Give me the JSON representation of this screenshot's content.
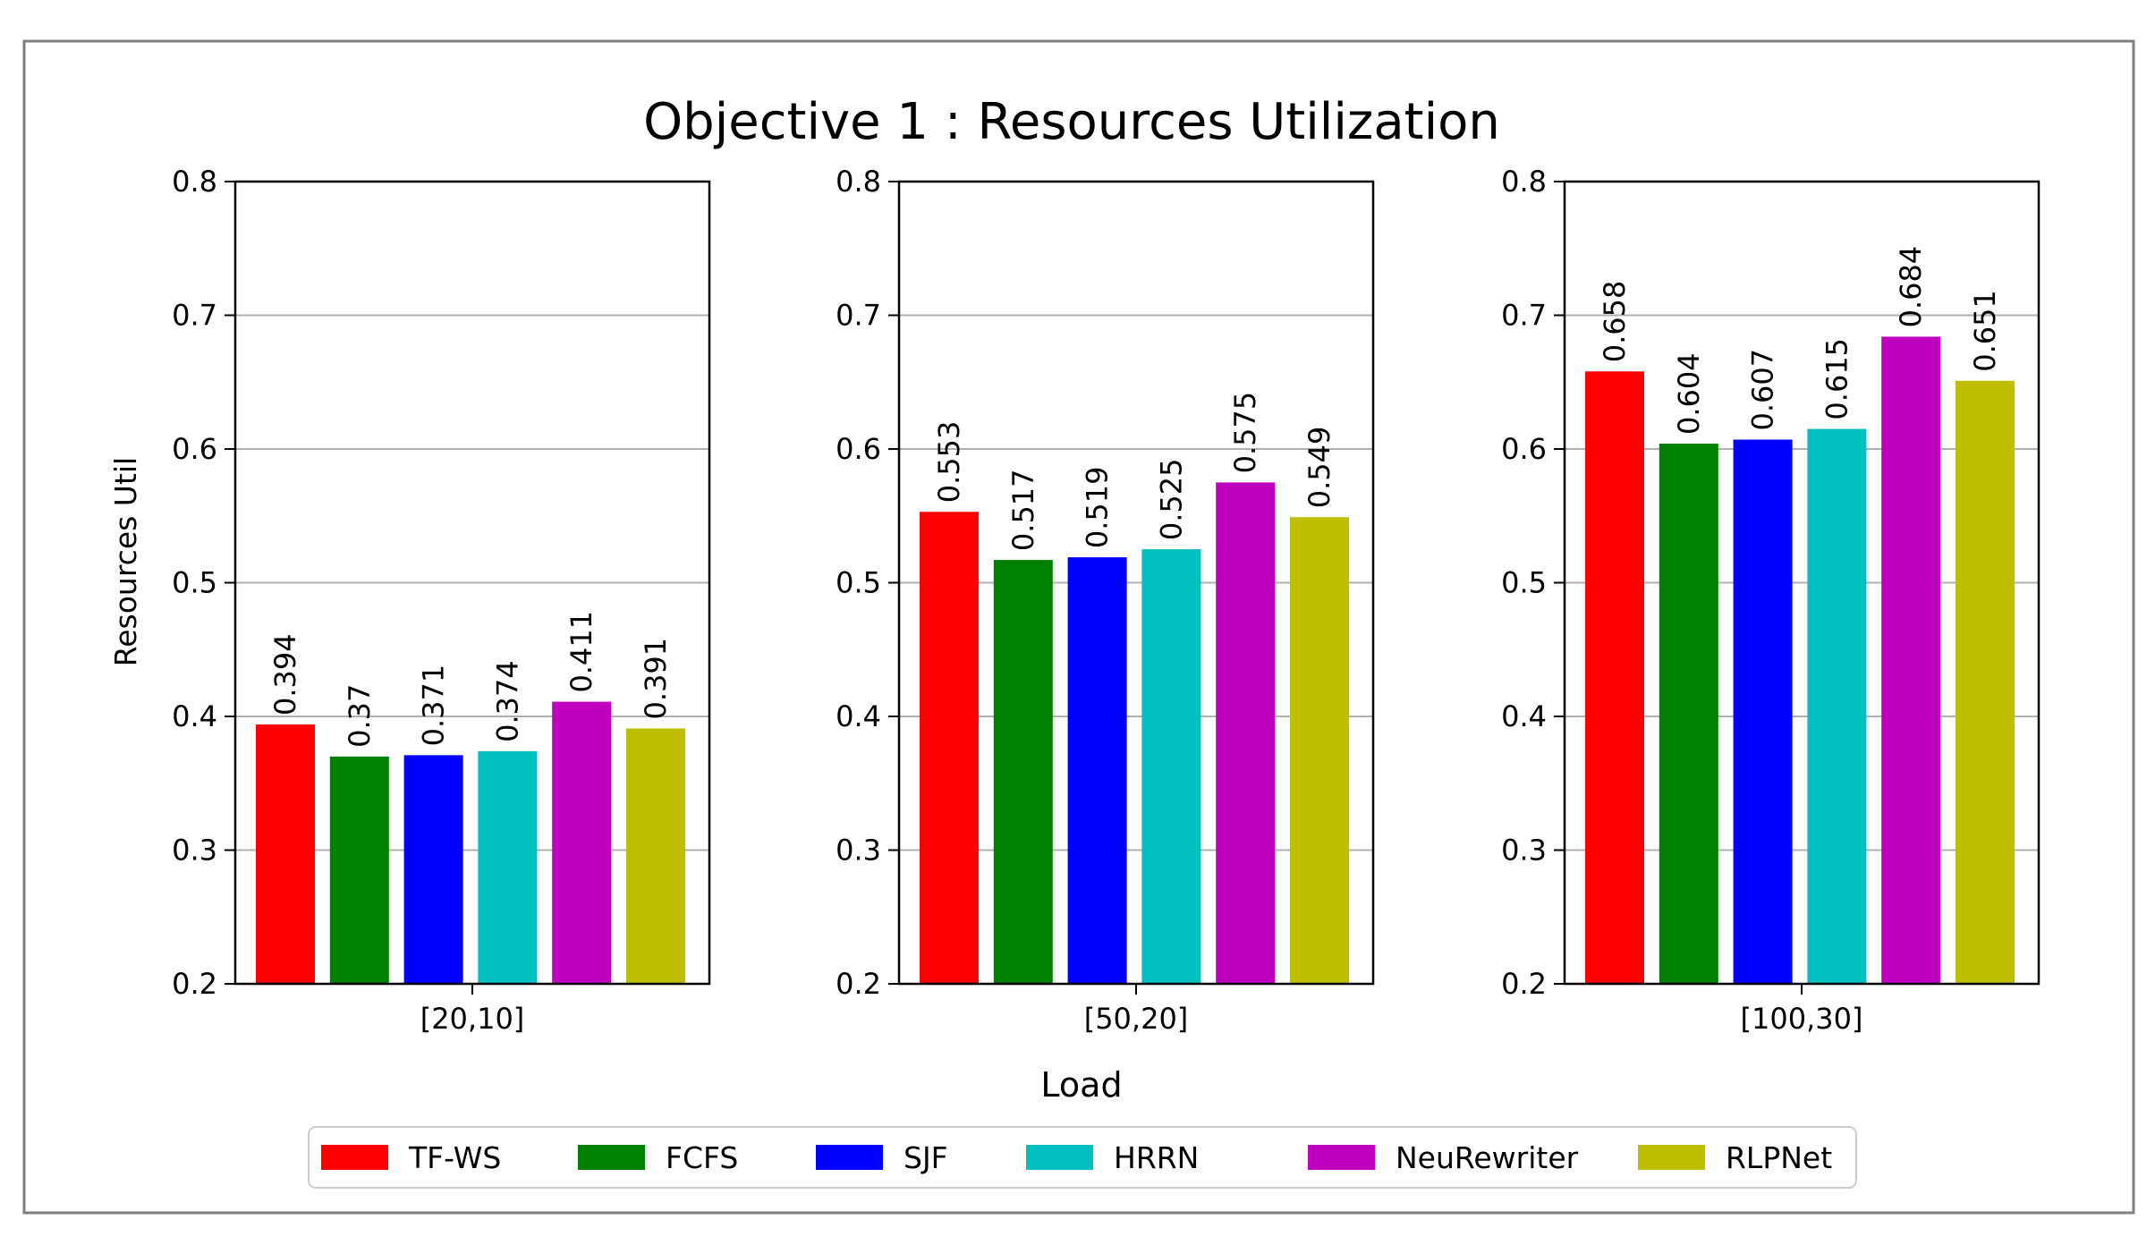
{
  "chart_data": {
    "type": "bar",
    "title": "Objective 1 : Resources Utilization",
    "xlabel": "Load",
    "ylabel": "Resources Util",
    "ylim": [
      0.2,
      0.8
    ],
    "yticks": [
      "0.2",
      "0.3",
      "0.4",
      "0.5",
      "0.6",
      "0.7",
      "0.8"
    ],
    "grid": "horizontal",
    "legend_position": "bottom",
    "colors": {
      "TF-WS": "#ff0000",
      "FCFS": "#008000",
      "SJF": "#0000ff",
      "HRRN": "#00bfbf",
      "NeuRewriter": "#bf00bf",
      "RLPNet": "#bfbf00"
    },
    "series_names": [
      "TF-WS",
      "FCFS",
      "SJF",
      "HRRN",
      "NeuRewriter",
      "RLPNet"
    ],
    "panels": [
      {
        "category": "[20,10]",
        "values": [
          0.394,
          0.37,
          0.371,
          0.374,
          0.411,
          0.391
        ],
        "labels": [
          "0.394",
          "0.37",
          "0.371",
          "0.374",
          "0.411",
          "0.391"
        ]
      },
      {
        "category": "[50,20]",
        "values": [
          0.553,
          0.517,
          0.519,
          0.525,
          0.575,
          0.549
        ],
        "labels": [
          "0.553",
          "0.517",
          "0.519",
          "0.525",
          "0.575",
          "0.549"
        ]
      },
      {
        "category": "[100,30]",
        "values": [
          0.658,
          0.604,
          0.607,
          0.615,
          0.684,
          0.651
        ],
        "labels": [
          "0.658",
          "0.604",
          "0.607",
          "0.615",
          "0.684",
          "0.651"
        ]
      }
    ]
  }
}
